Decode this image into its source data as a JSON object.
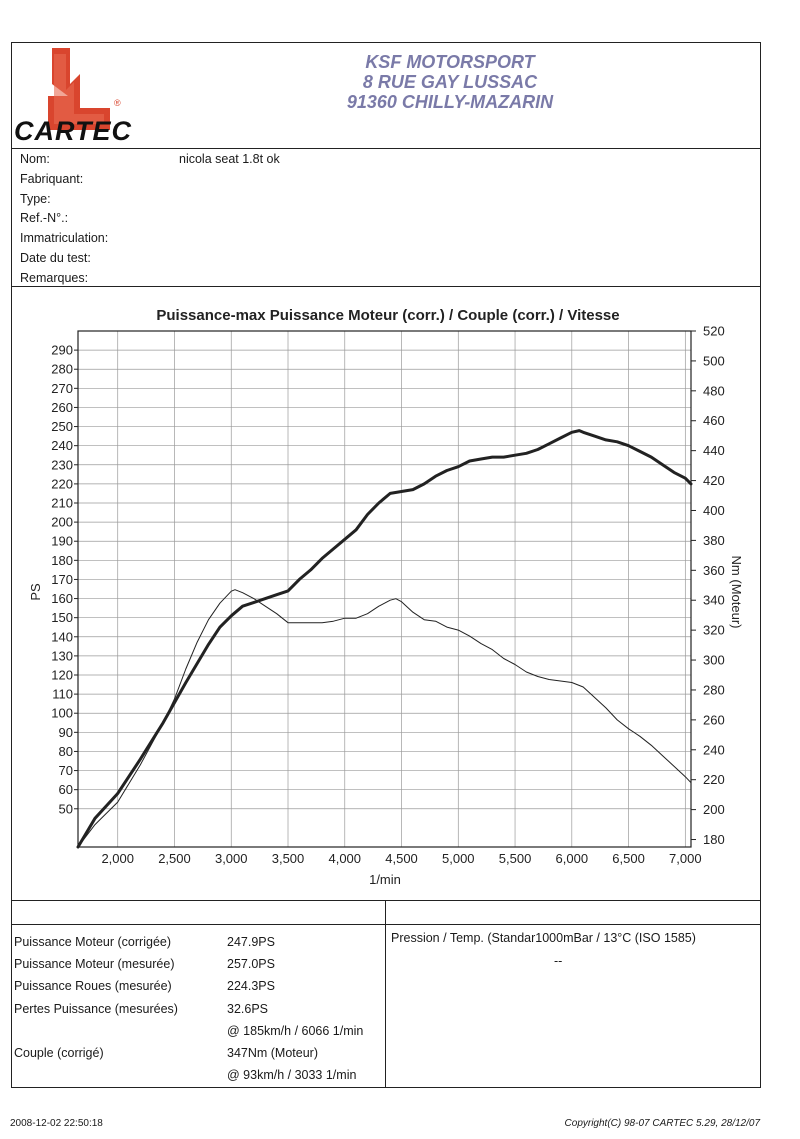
{
  "header": {
    "logo_text": "CARTEC",
    "logo_mark": "®",
    "company_lines": [
      "KSF MOTORSPORT",
      "8 RUE GAY LUSSAC",
      "91360 CHILLY-MAZARIN"
    ],
    "colors": {
      "logo_red": "#d9452e",
      "company_text": "#7a7aa8"
    }
  },
  "vehicle_info": [
    {
      "label": "Nom:",
      "value": "nicola seat 1.8t ok"
    },
    {
      "label": "Fabriquant:",
      "value": ""
    },
    {
      "label": "Type:",
      "value": ""
    },
    {
      "label": "Ref.-N°.:",
      "value": ""
    },
    {
      "label": "Immatriculation:",
      "value": ""
    },
    {
      "label": "Date du test:",
      "value": ""
    },
    {
      "label": "Remarques:",
      "value": ""
    }
  ],
  "chart_data": {
    "type": "line",
    "title": "Puissance-max Puissance Moteur (corr.) / Couple (corr.) / Vitesse",
    "xlabel": "1/min",
    "ylabel_left": "PS",
    "ylabel_right": "Nm (Moteur)",
    "xlim": [
      1650,
      7050
    ],
    "ylim_left": [
      30,
      300
    ],
    "ylim_right": [
      175,
      520
    ],
    "x_ticks": [
      2000,
      2500,
      3000,
      3500,
      4000,
      4500,
      5000,
      5500,
      6000,
      6500,
      7000
    ],
    "x_tick_labels": [
      "2,000",
      "2,500",
      "3,000",
      "3,500",
      "4,000",
      "4,500",
      "5,000",
      "5,500",
      "6,000",
      "6,500",
      "7,000"
    ],
    "y_left_ticks": [
      50,
      60,
      70,
      80,
      90,
      100,
      110,
      120,
      130,
      140,
      150,
      160,
      170,
      180,
      190,
      200,
      210,
      220,
      230,
      240,
      250,
      260,
      270,
      280,
      290
    ],
    "y_right_ticks": [
      180,
      200,
      220,
      240,
      260,
      280,
      300,
      320,
      340,
      360,
      380,
      400,
      420,
      440,
      460,
      480,
      500,
      520
    ],
    "grid": true,
    "series": [
      {
        "axis": "left",
        "color": "#222222",
        "width": 3,
        "x": [
          1650,
          1800,
          2000,
          2200,
          2400,
          2600,
          2800,
          2900,
          3000,
          3100,
          3200,
          3300,
          3400,
          3500,
          3600,
          3700,
          3800,
          3900,
          4000,
          4100,
          4200,
          4300,
          4400,
          4500,
          4600,
          4700,
          4800,
          4900,
          5000,
          5100,
          5200,
          5300,
          5400,
          5500,
          5600,
          5700,
          5800,
          5900,
          6000,
          6066,
          6100,
          6200,
          6300,
          6400,
          6500,
          6600,
          6700,
          6800,
          6900,
          7000,
          7050
        ],
        "values": [
          30,
          45,
          58,
          76,
          95,
          116,
          136,
          145,
          151,
          156,
          158,
          160,
          162,
          164,
          170,
          175,
          181,
          186,
          191,
          196,
          204,
          210,
          215,
          216,
          217,
          220,
          224,
          227,
          229,
          232,
          233,
          234,
          234,
          235,
          236,
          238,
          241,
          244,
          247,
          247.9,
          247,
          245,
          243,
          242,
          240,
          237,
          234,
          230,
          226,
          223,
          220
        ]
      },
      {
        "axis": "right",
        "color": "#222222",
        "width": 1,
        "x": [
          1650,
          1800,
          2000,
          2200,
          2400,
          2500,
          2600,
          2700,
          2800,
          2900,
          3000,
          3033,
          3100,
          3200,
          3300,
          3400,
          3500,
          3600,
          3700,
          3800,
          3900,
          4000,
          4100,
          4200,
          4300,
          4400,
          4450,
          4500,
          4600,
          4700,
          4800,
          4900,
          5000,
          5100,
          5200,
          5300,
          5400,
          5500,
          5600,
          5700,
          5800,
          5900,
          6000,
          6100,
          6200,
          6300,
          6400,
          6500,
          6600,
          6700,
          6800,
          6900,
          7000,
          7050
        ],
        "values": [
          175,
          190,
          205,
          230,
          258,
          274,
          294,
          312,
          327,
          338,
          346,
          347,
          345,
          341,
          336,
          331,
          325,
          325,
          325,
          325,
          326,
          328,
          328,
          331,
          336,
          340,
          341,
          339,
          332,
          327,
          326,
          322,
          320,
          316,
          311,
          307,
          301,
          297,
          292,
          289,
          287,
          286,
          285,
          282,
          275,
          268,
          260,
          254,
          249,
          243,
          236,
          229,
          222,
          218
        ]
      }
    ]
  },
  "results": {
    "rows": [
      {
        "label": "Puissance Moteur (corrigée)",
        "value": "247.9PS"
      },
      {
        "label": "Puissance Moteur (mesurée)",
        "value": "257.0PS"
      },
      {
        "label": "Puissance Roues (mesurée)",
        "value": "224.3PS"
      },
      {
        "label": "Pertes Puissance (mesurées)",
        "value": "32.6PS"
      },
      {
        "label": "",
        "value": "@ 185km/h / 6066 1/min"
      },
      {
        "label": "Couple (corrigé)",
        "value": "347Nm (Moteur)"
      },
      {
        "label": "",
        "value": "@ 93km/h / 3033 1/min"
      }
    ],
    "pressure_label": "Pression / Temp. (Standar1000mBar / 13°C   (ISO 1585)",
    "pressure_value": "--"
  },
  "footer": {
    "timestamp": "2008-12-02 22:50:18",
    "copyright": "Copyright(C) 98-07 CARTEC 5.29, 28/12/07"
  }
}
